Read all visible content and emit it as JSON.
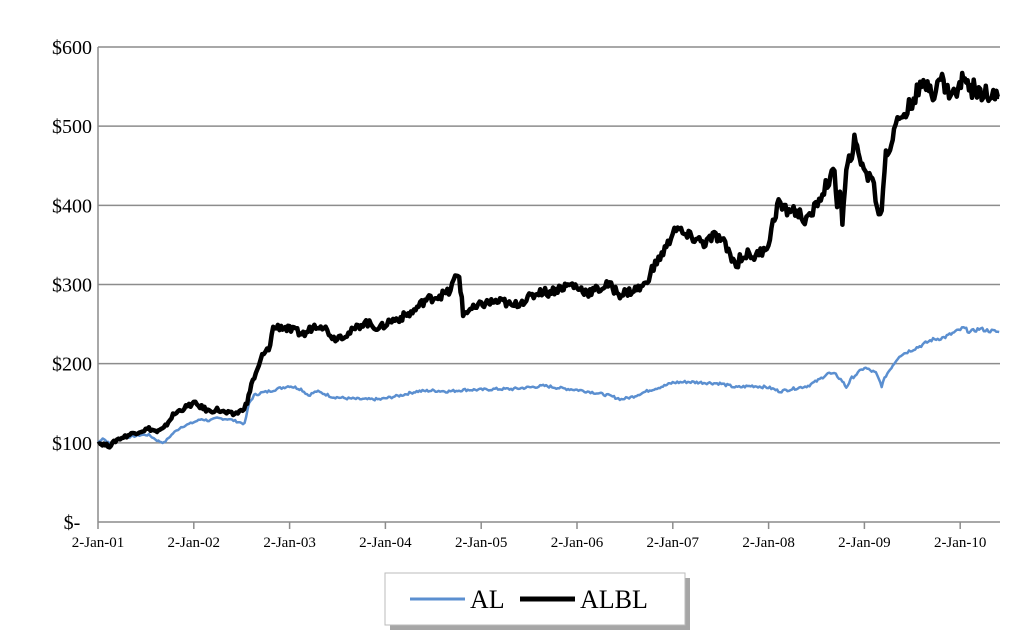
{
  "chart_data": {
    "type": "line",
    "title": "",
    "xlabel": "",
    "ylabel": "",
    "ylim": [
      0,
      600
    ],
    "y_ticks": [
      {
        "value": 0,
        "label": "$-"
      },
      {
        "value": 100,
        "label": "$100"
      },
      {
        "value": 200,
        "label": "$200"
      },
      {
        "value": 300,
        "label": "$300"
      },
      {
        "value": 400,
        "label": "$400"
      },
      {
        "value": 500,
        "label": "$500"
      },
      {
        "value": 600,
        "label": "$600"
      }
    ],
    "x_tick_labels": [
      "2-Jan-01",
      "2-Jan-02",
      "2-Jan-03",
      "2-Jan-04",
      "2-Jan-05",
      "2-Jan-06",
      "2-Jan-07",
      "2-Jan-08",
      "2-Jan-09",
      "2-Jan-10"
    ],
    "x_range": [
      "2001-01-02",
      "2010-05-31"
    ],
    "grid": true,
    "legend": "bottom",
    "series": [
      {
        "name": "AL",
        "color": "#5B8FD0",
        "points": [
          [
            "2001-01-02",
            100
          ],
          [
            "2001-01-20",
            106
          ],
          [
            "2001-02-15",
            99
          ],
          [
            "2001-03-15",
            104
          ],
          [
            "2001-04-15",
            107
          ],
          [
            "2001-05-15",
            108
          ],
          [
            "2001-06-15",
            110
          ],
          [
            "2001-07-15",
            110
          ],
          [
            "2001-08-15",
            103
          ],
          [
            "2001-09-10",
            100
          ],
          [
            "2001-10-15",
            112
          ],
          [
            "2001-11-15",
            120
          ],
          [
            "2002-01-02",
            126
          ],
          [
            "2002-02-01",
            130
          ],
          [
            "2002-03-01",
            128
          ],
          [
            "2002-04-01",
            131
          ],
          [
            "2002-05-15",
            130
          ],
          [
            "2002-06-15",
            127
          ],
          [
            "2002-07-15",
            124
          ],
          [
            "2002-08-01",
            150
          ],
          [
            "2002-08-20",
            160
          ],
          [
            "2002-09-15",
            163
          ],
          [
            "2002-10-15",
            165
          ],
          [
            "2002-11-15",
            168
          ],
          [
            "2003-01-02",
            172
          ],
          [
            "2003-02-15",
            168
          ],
          [
            "2003-03-15",
            160
          ],
          [
            "2003-04-15",
            165
          ],
          [
            "2003-05-15",
            162
          ],
          [
            "2003-06-15",
            158
          ],
          [
            "2003-08-15",
            156
          ],
          [
            "2003-10-15",
            155
          ],
          [
            "2003-12-15",
            155
          ],
          [
            "2004-01-15",
            157
          ],
          [
            "2004-03-01",
            160
          ],
          [
            "2004-05-01",
            165
          ],
          [
            "2004-07-01",
            166
          ],
          [
            "2004-09-01",
            165
          ],
          [
            "2004-11-01",
            167
          ],
          [
            "2005-01-02",
            167
          ],
          [
            "2005-03-01",
            168
          ],
          [
            "2005-05-01",
            168
          ],
          [
            "2005-07-01",
            170
          ],
          [
            "2005-09-01",
            172
          ],
          [
            "2005-11-01",
            169
          ],
          [
            "2006-01-02",
            167
          ],
          [
            "2006-03-01",
            164
          ],
          [
            "2006-05-01",
            160
          ],
          [
            "2006-06-20",
            155
          ],
          [
            "2006-08-01",
            158
          ],
          [
            "2006-10-01",
            166
          ],
          [
            "2006-12-01",
            172
          ],
          [
            "2007-01-02",
            176
          ],
          [
            "2007-03-01",
            177
          ],
          [
            "2007-05-01",
            176
          ],
          [
            "2007-07-01",
            175
          ],
          [
            "2007-09-01",
            170
          ],
          [
            "2007-11-01",
            172
          ],
          [
            "2008-01-02",
            170
          ],
          [
            "2008-02-15",
            165
          ],
          [
            "2008-04-01",
            168
          ],
          [
            "2008-06-01",
            172
          ],
          [
            "2008-07-15",
            180
          ],
          [
            "2008-08-15",
            188
          ],
          [
            "2008-09-15",
            186
          ],
          [
            "2008-10-10",
            178
          ],
          [
            "2008-10-25",
            170
          ],
          [
            "2008-11-15",
            182
          ],
          [
            "2008-12-15",
            190
          ],
          [
            "2009-01-02",
            195
          ],
          [
            "2009-02-15",
            188
          ],
          [
            "2009-03-09",
            172
          ],
          [
            "2009-03-25",
            185
          ],
          [
            "2009-04-20",
            198
          ],
          [
            "2009-05-15",
            210
          ],
          [
            "2009-06-15",
            215
          ],
          [
            "2009-08-01",
            222
          ],
          [
            "2009-09-15",
            230
          ],
          [
            "2009-11-01",
            233
          ],
          [
            "2009-12-15",
            240
          ],
          [
            "2010-01-15",
            245
          ],
          [
            "2010-02-10",
            240
          ],
          [
            "2010-03-15",
            244
          ],
          [
            "2010-04-15",
            242
          ],
          [
            "2010-05-31",
            240
          ]
        ]
      },
      {
        "name": "ALBL",
        "color": "#000000",
        "points": [
          [
            "2001-01-02",
            100
          ],
          [
            "2001-02-15",
            96
          ],
          [
            "2001-03-15",
            104
          ],
          [
            "2001-04-15",
            108
          ],
          [
            "2001-05-15",
            112
          ],
          [
            "2001-06-15",
            115
          ],
          [
            "2001-07-15",
            118
          ],
          [
            "2001-08-15",
            114
          ],
          [
            "2001-09-10",
            118
          ],
          [
            "2001-10-15",
            135
          ],
          [
            "2001-11-15",
            142
          ],
          [
            "2001-12-15",
            147
          ],
          [
            "2002-01-02",
            150
          ],
          [
            "2002-02-01",
            145
          ],
          [
            "2002-03-01",
            140
          ],
          [
            "2002-04-01",
            142
          ],
          [
            "2002-05-01",
            138
          ],
          [
            "2002-06-01",
            136
          ],
          [
            "2002-07-01",
            140
          ],
          [
            "2002-07-25",
            150
          ],
          [
            "2002-08-10",
            175
          ],
          [
            "2002-09-01",
            190
          ],
          [
            "2002-09-20",
            210
          ],
          [
            "2002-10-15",
            218
          ],
          [
            "2002-11-01",
            245
          ],
          [
            "2002-12-01",
            247
          ],
          [
            "2003-01-02",
            243
          ],
          [
            "2003-02-01",
            240
          ],
          [
            "2003-03-01",
            237
          ],
          [
            "2003-04-01",
            247
          ],
          [
            "2003-05-01",
            250
          ],
          [
            "2003-06-01",
            240
          ],
          [
            "2003-06-20",
            232
          ],
          [
            "2003-07-15",
            235
          ],
          [
            "2003-08-15",
            238
          ],
          [
            "2003-09-15",
            245
          ],
          [
            "2003-10-15",
            253
          ],
          [
            "2003-11-15",
            248
          ],
          [
            "2003-12-15",
            245
          ],
          [
            "2004-01-15",
            253
          ],
          [
            "2004-03-01",
            258
          ],
          [
            "2004-04-15",
            265
          ],
          [
            "2004-06-01",
            280
          ],
          [
            "2004-07-15",
            285
          ],
          [
            "2004-09-01",
            290
          ],
          [
            "2004-09-25",
            308
          ],
          [
            "2004-10-10",
            312
          ],
          [
            "2004-10-25",
            262
          ],
          [
            "2004-11-15",
            268
          ],
          [
            "2004-12-15",
            270
          ],
          [
            "2005-01-02",
            275
          ],
          [
            "2005-02-15",
            278
          ],
          [
            "2005-04-01",
            278
          ],
          [
            "2005-05-01",
            272
          ],
          [
            "2005-06-01",
            278
          ],
          [
            "2005-07-15",
            285
          ],
          [
            "2005-08-15",
            292
          ],
          [
            "2005-09-15",
            290
          ],
          [
            "2005-11-01",
            296
          ],
          [
            "2005-12-15",
            300
          ],
          [
            "2006-01-02",
            296
          ],
          [
            "2006-02-15",
            290
          ],
          [
            "2006-04-01",
            295
          ],
          [
            "2006-05-01",
            300
          ],
          [
            "2006-06-15",
            288
          ],
          [
            "2006-08-01",
            292
          ],
          [
            "2006-09-15",
            298
          ],
          [
            "2006-10-15",
            318
          ],
          [
            "2006-11-15",
            335
          ],
          [
            "2006-12-15",
            350
          ],
          [
            "2007-01-02",
            368
          ],
          [
            "2007-01-15",
            372
          ],
          [
            "2007-02-15",
            362
          ],
          [
            "2007-04-01",
            358
          ],
          [
            "2007-05-01",
            352
          ],
          [
            "2007-06-15",
            362
          ],
          [
            "2007-07-15",
            352
          ],
          [
            "2007-08-15",
            335
          ],
          [
            "2007-09-01",
            322
          ],
          [
            "2007-09-15",
            334
          ],
          [
            "2007-10-15",
            338
          ],
          [
            "2007-11-15",
            335
          ],
          [
            "2007-12-15",
            345
          ],
          [
            "2008-01-02",
            352
          ],
          [
            "2008-01-25",
            385
          ],
          [
            "2008-02-10",
            405
          ],
          [
            "2008-03-01",
            393
          ],
          [
            "2008-04-01",
            395
          ],
          [
            "2008-05-01",
            388
          ],
          [
            "2008-06-01",
            380
          ],
          [
            "2008-07-01",
            400
          ],
          [
            "2008-08-01",
            420
          ],
          [
            "2008-08-20",
            432
          ],
          [
            "2008-09-10",
            440
          ],
          [
            "2008-09-20",
            405
          ],
          [
            "2008-10-01",
            420
          ],
          [
            "2008-10-10",
            378
          ],
          [
            "2008-10-25",
            440
          ],
          [
            "2008-11-10",
            462
          ],
          [
            "2008-11-25",
            480
          ],
          [
            "2008-12-10",
            465
          ],
          [
            "2008-12-25",
            455
          ],
          [
            "2009-01-10",
            435
          ],
          [
            "2009-02-01",
            440
          ],
          [
            "2009-02-20",
            392
          ],
          [
            "2009-03-09",
            395
          ],
          [
            "2009-03-25",
            470
          ],
          [
            "2009-04-10",
            472
          ],
          [
            "2009-04-25",
            495
          ],
          [
            "2009-05-15",
            510
          ],
          [
            "2009-06-15",
            520
          ],
          [
            "2009-07-15",
            540
          ],
          [
            "2009-08-15",
            550
          ],
          [
            "2009-09-10",
            555
          ],
          [
            "2009-09-25",
            538
          ],
          [
            "2009-10-20",
            562
          ],
          [
            "2009-11-15",
            545
          ],
          [
            "2009-12-15",
            540
          ],
          [
            "2010-01-05",
            553
          ],
          [
            "2010-01-20",
            568
          ],
          [
            "2010-02-10",
            545
          ],
          [
            "2010-03-01",
            550
          ],
          [
            "2010-03-20",
            540
          ],
          [
            "2010-04-10",
            552
          ],
          [
            "2010-04-25",
            530
          ],
          [
            "2010-05-15",
            540
          ],
          [
            "2010-05-31",
            537
          ]
        ]
      }
    ]
  }
}
